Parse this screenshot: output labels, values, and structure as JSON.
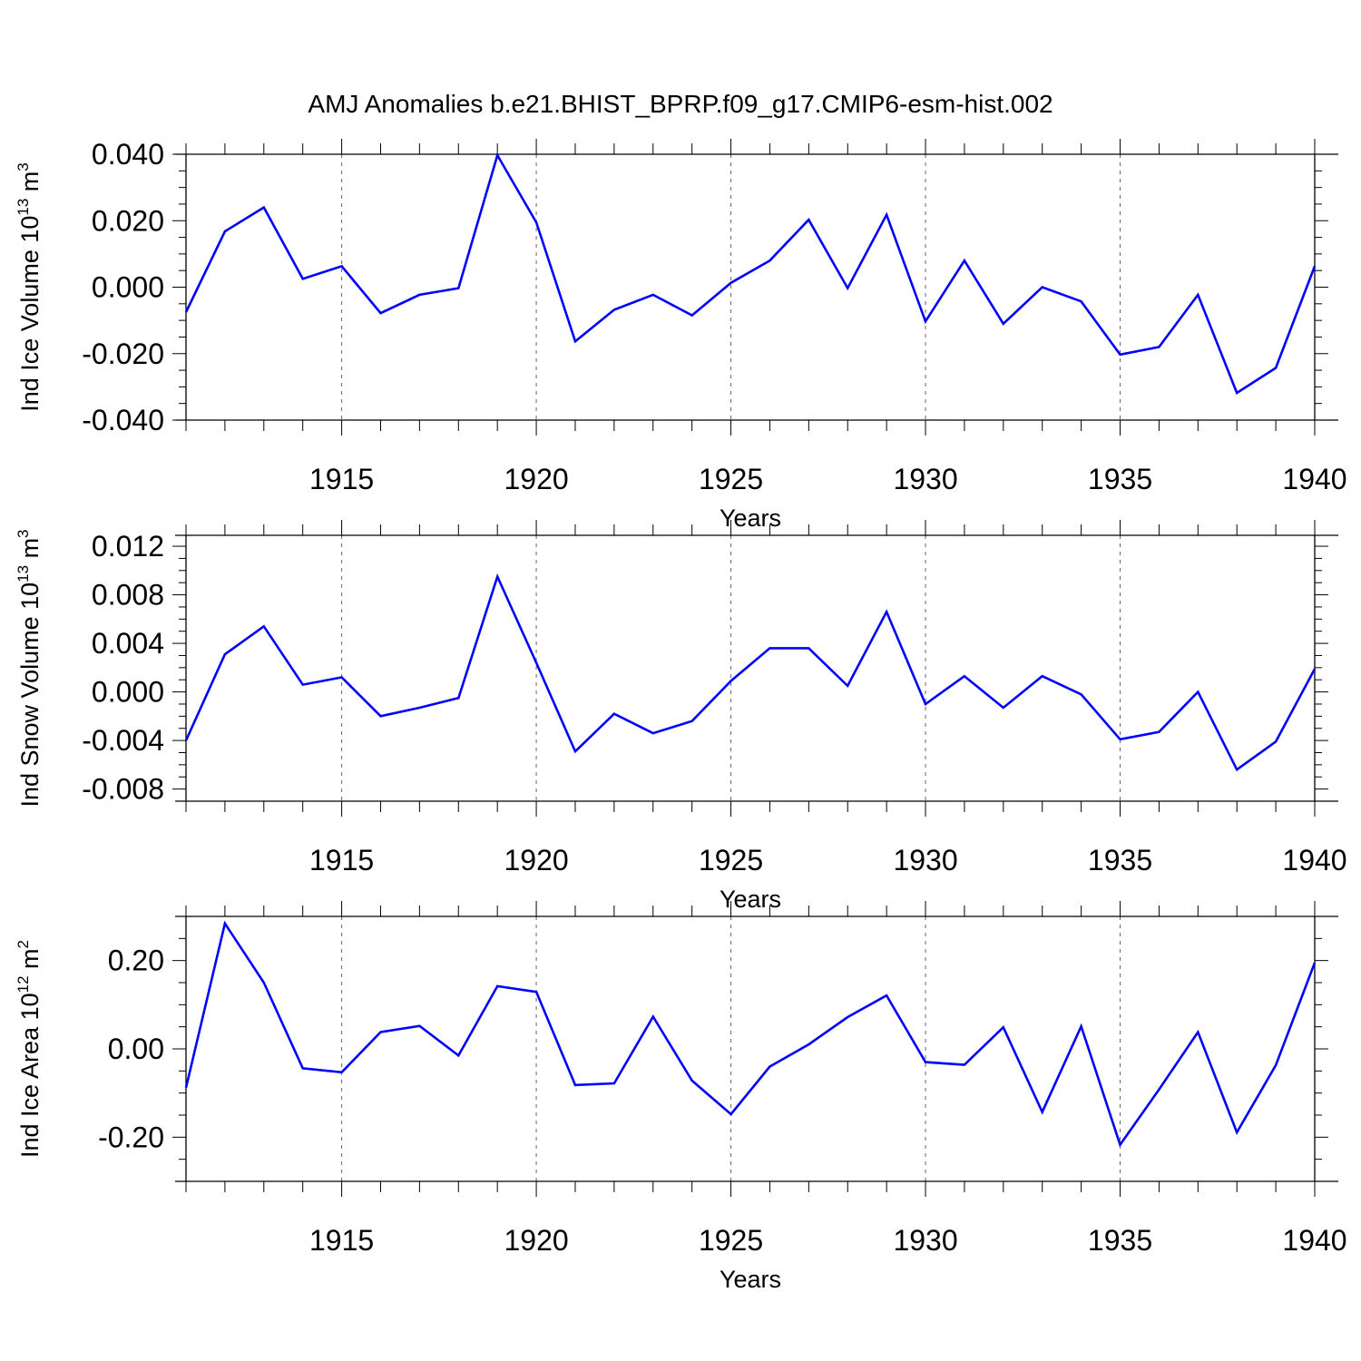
{
  "figure_title": "AMJ Anomalies b.e21.BHIST_BPRP.f09_g17.CMIP6-esm-hist.002",
  "colors": {
    "line": "#0000ff",
    "axes": "#000000",
    "grid": "#666666"
  },
  "chart_data": [
    {
      "type": "line",
      "title": "AMJ Anomalies b.e21.BHIST_BPRP.f09_g17.CMIP6-esm-hist.002",
      "ylabel": {
        "text": "Ind Ice Volume 10",
        "sup": "13",
        "unit": " m",
        "unit_sup": "3"
      },
      "xlabel": "Years",
      "xlim": [
        1911,
        1940
      ],
      "ylim": [
        -0.04,
        0.04
      ],
      "xticks": [
        1915,
        1920,
        1925,
        1930,
        1935,
        1940
      ],
      "xtick_labels": [
        "1915",
        "1920",
        "1925",
        "1930",
        "1935",
        "1940"
      ],
      "yticks": [
        -0.04,
        -0.02,
        0.0,
        0.02,
        0.04
      ],
      "ytick_labels": [
        "-0.040",
        "-0.020",
        "0.000",
        "0.020",
        "0.040"
      ],
      "yminor_step": 0.005,
      "grid": "vertical dashed at major x ticks",
      "x": [
        1911,
        1912,
        1913,
        1914,
        1915,
        1916,
        1917,
        1918,
        1919,
        1920,
        1921,
        1922,
        1923,
        1924,
        1925,
        1926,
        1927,
        1928,
        1929,
        1930,
        1931,
        1932,
        1933,
        1934,
        1935,
        1936,
        1937,
        1938,
        1939,
        1940
      ],
      "series": [
        {
          "name": "Ind Ice Volume",
          "values": [
            -0.0075,
            0.0168,
            0.024,
            0.0025,
            0.0063,
            -0.0078,
            -0.0023,
            -0.0003,
            0.0397,
            0.0195,
            -0.0163,
            -0.0068,
            -0.0023,
            -0.0085,
            0.0013,
            0.008,
            0.0203,
            -0.0003,
            0.0218,
            -0.0103,
            0.008,
            -0.011,
            0.0,
            -0.0043,
            -0.0203,
            -0.018,
            -0.0023,
            -0.0318,
            -0.0243,
            0.0063
          ]
        }
      ]
    },
    {
      "type": "line",
      "title": "",
      "ylabel": {
        "text": "Ind Snow Volume 10",
        "sup": "13",
        "unit": " m",
        "unit_sup": "3"
      },
      "xlabel": "Years",
      "xlim": [
        1911,
        1940
      ],
      "ylim": [
        -0.009,
        0.0129
      ],
      "xticks": [
        1915,
        1920,
        1925,
        1930,
        1935,
        1940
      ],
      "xtick_labels": [
        "1915",
        "1920",
        "1925",
        "1930",
        "1935",
        "1940"
      ],
      "yticks": [
        -0.008,
        -0.004,
        0.0,
        0.004,
        0.008,
        0.012
      ],
      "ytick_labels": [
        "-0.008",
        "-0.004",
        "0.000",
        "0.004",
        "0.008",
        "0.012"
      ],
      "yminor_step": 0.001,
      "grid": "vertical dashed at major x ticks",
      "x": [
        1911,
        1912,
        1913,
        1914,
        1915,
        1916,
        1917,
        1918,
        1919,
        1920,
        1921,
        1922,
        1923,
        1924,
        1925,
        1926,
        1927,
        1928,
        1929,
        1930,
        1931,
        1932,
        1933,
        1934,
        1935,
        1936,
        1937,
        1938,
        1939,
        1940
      ],
      "series": [
        {
          "name": "Ind Snow Volume",
          "values": [
            -0.004,
            0.0031,
            0.0054,
            0.0006,
            0.0012,
            -0.002,
            -0.0013,
            -0.0005,
            0.0095,
            0.0024,
            -0.0049,
            -0.0018,
            -0.0034,
            -0.0024,
            0.0009,
            0.0036,
            0.0036,
            0.0005,
            0.0066,
            -0.001,
            0.0013,
            -0.0013,
            0.0013,
            -0.0002,
            -0.0039,
            -0.0033,
            0.0,
            -0.0064,
            -0.0041,
            0.0019
          ]
        }
      ]
    },
    {
      "type": "line",
      "title": "",
      "ylabel": {
        "text": "Ind Ice Area 10",
        "sup": "12",
        "unit": " m",
        "unit_sup": "2"
      },
      "xlabel": "Years",
      "xlim": [
        1911,
        1940
      ],
      "ylim": [
        -0.3,
        0.3
      ],
      "xticks": [
        1915,
        1920,
        1925,
        1930,
        1935,
        1940
      ],
      "xtick_labels": [
        "1915",
        "1920",
        "1925",
        "1930",
        "1935",
        "1940"
      ],
      "yticks": [
        -0.2,
        0.0,
        0.2
      ],
      "ytick_labels": [
        "-0.20",
        "0.00",
        "0.20"
      ],
      "yminor_step": 0.05,
      "grid": "vertical dashed at major x ticks",
      "x": [
        1911,
        1912,
        1913,
        1914,
        1915,
        1916,
        1917,
        1918,
        1919,
        1920,
        1921,
        1922,
        1923,
        1924,
        1925,
        1926,
        1927,
        1928,
        1929,
        1930,
        1931,
        1932,
        1933,
        1934,
        1935,
        1936,
        1937,
        1938,
        1939,
        1940
      ],
      "series": [
        {
          "name": "Ind Ice Area",
          "values": [
            -0.088,
            0.284,
            0.15,
            -0.044,
            -0.053,
            0.038,
            0.052,
            -0.015,
            0.142,
            0.129,
            -0.082,
            -0.078,
            0.073,
            -0.072,
            -0.148,
            -0.04,
            0.01,
            0.072,
            0.121,
            -0.03,
            -0.036,
            0.049,
            -0.143,
            0.051,
            -0.217,
            -0.092,
            0.038,
            -0.189,
            -0.037,
            0.195
          ]
        }
      ]
    }
  ]
}
